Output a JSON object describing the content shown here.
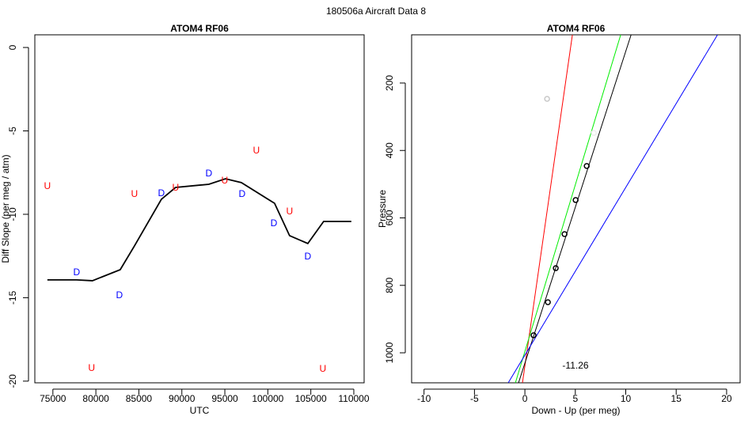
{
  "title": "180506a   Aircraft Data 8",
  "chart_data": [
    {
      "type": "line",
      "title": "ATOM4 RF06",
      "x_label": "UTC",
      "y_label": "Diff Slope (per meg / atm)",
      "xlim": [
        72900,
        111200
      ],
      "ylim": [
        -20.1,
        0.76
      ],
      "xticks": [
        75000,
        80000,
        85000,
        90000,
        95000,
        100000,
        105000,
        110000
      ],
      "yticks": [
        0,
        -5,
        -10,
        -15,
        -20
      ],
      "series": [
        {
          "color": "#000000",
          "x": [
            74360,
            77760,
            79600,
            82830,
            84480,
            87620,
            89270,
            93140,
            95070,
            96920,
            100780,
            102530,
            104650,
            106490,
            109710
          ],
          "values": [
            -13.93,
            -13.93,
            -13.98,
            -13.32,
            -11.9,
            -9.1,
            -8.39,
            -8.2,
            -7.87,
            -8.1,
            -9.34,
            -11.28,
            -11.75,
            -10.43,
            -10.43
          ]
        }
      ],
      "markers": [
        {
          "label": "U",
          "color": "#ff0000",
          "x": [
            74360,
            84480,
            89270,
            94980,
            98660,
            102530,
            79500,
            106400
          ],
          "values": [
            -8.34,
            -8.82,
            -8.44,
            -8.01,
            -6.21,
            -9.86,
            -19.24,
            -19.29
          ]
        },
        {
          "label": "D",
          "color": "#0000ff",
          "x": [
            77760,
            82740,
            87620,
            93140,
            97010,
            100700,
            104650
          ],
          "values": [
            -13.51,
            -14.88,
            -8.77,
            -7.58,
            -8.82,
            -10.57,
            -12.56
          ]
        }
      ]
    },
    {
      "type": "scatter",
      "title": "ATOM4 RF06",
      "x_label": "Down - Up (per meg)",
      "y_label": "Pressure",
      "xlim": [
        -11.23,
        21.34
      ],
      "ylim": [
        1089,
        57
      ],
      "xticks": [
        -10,
        -5,
        0,
        5,
        10,
        15,
        20
      ],
      "yticks": [
        200,
        400,
        600,
        800,
        1000
      ],
      "points": [
        {
          "color": "#000000",
          "x": [
            6.13,
            5.03,
            3.93,
            3.06,
            2.28,
            0.86
          ],
          "values": [
            446,
            547,
            648,
            749,
            850,
            948
          ]
        },
        {
          "color": "#c8c8c8",
          "x": [
            2.2
          ],
          "values": [
            247
          ]
        },
        {
          "color": "#eeeeee",
          "x": [
            6.83
          ],
          "values": [
            348
          ]
        }
      ],
      "lines": [
        {
          "color": "#ff0000",
          "x": [
            -0.24,
            4.71
          ],
          "values": [
            1089,
            57
          ]
        },
        {
          "color": "#00ee00",
          "x": [
            -0.94,
            9.5
          ],
          "values": [
            1089,
            57
          ]
        },
        {
          "color": "#000000",
          "x": [
            -0.63,
            10.53
          ],
          "values": [
            1089,
            57
          ]
        },
        {
          "color": "#0000ff",
          "x": [
            -1.65,
            19.1
          ],
          "values": [
            1089,
            57
          ]
        }
      ],
      "annotation": "-11.26"
    }
  ]
}
